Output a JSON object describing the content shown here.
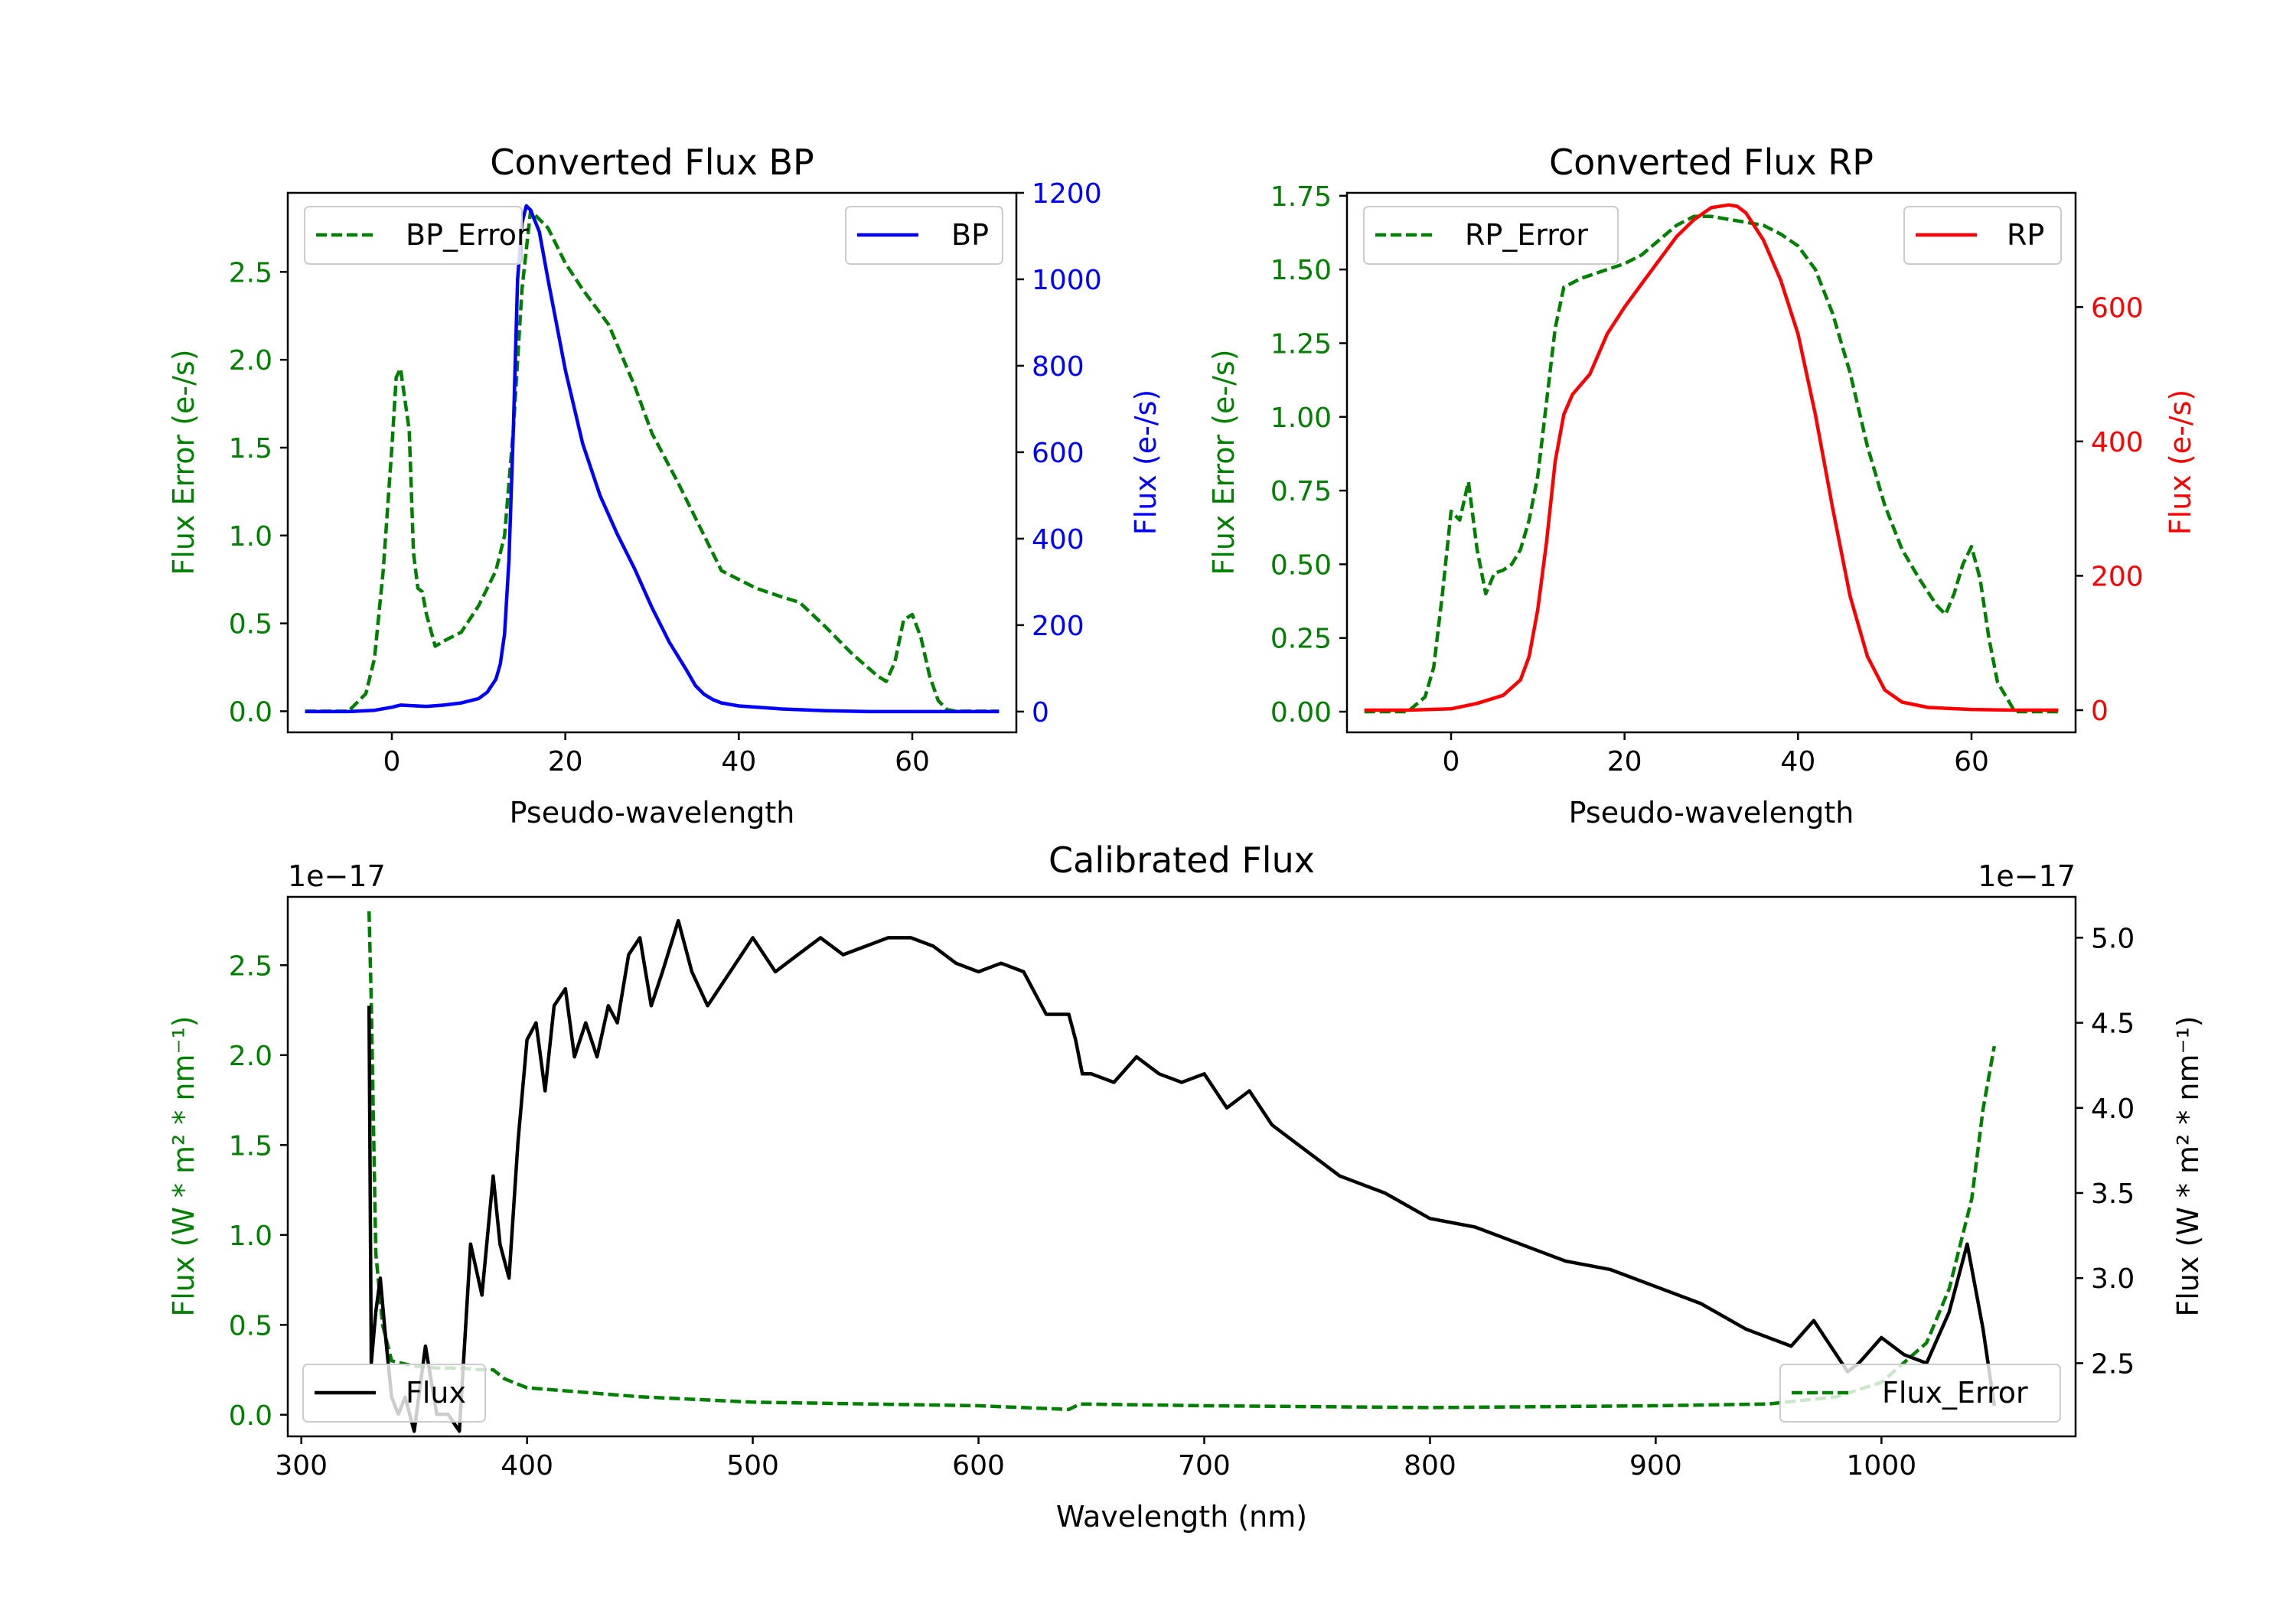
{
  "chart_data": [
    {
      "id": "bp",
      "type": "line",
      "title": "Converted Flux BP",
      "xlabel": "Pseudo-wavelength",
      "ylabel_left": "Flux Error (e-/s)",
      "ylabel_right": "Flux (e-/s)",
      "xlim": [
        -12,
        72
      ],
      "ylim_left": [
        -0.12,
        2.95
      ],
      "ylim_right": [
        -48,
        1200
      ],
      "xticks": [
        0,
        20,
        40,
        60
      ],
      "yticks_left": [
        0.0,
        0.5,
        1.0,
        1.5,
        2.0,
        2.5
      ],
      "yticks_right": [
        0,
        200,
        400,
        600,
        800,
        1000,
        1200
      ],
      "series_left": {
        "name": "BP_Error",
        "color": "#008000",
        "dash": true,
        "x": [
          -10,
          -5,
          -3,
          -2,
          -1,
          0,
          0.5,
          1,
          2,
          2.5,
          3,
          3.5,
          4,
          5,
          6,
          8,
          10,
          12,
          13,
          14,
          15,
          16,
          18,
          20,
          22,
          25,
          28,
          30,
          33,
          36,
          38,
          40,
          42,
          45,
          47,
          50,
          53,
          56,
          57,
          58,
          59,
          60,
          61,
          62,
          63,
          64,
          65,
          70
        ],
        "y": [
          0,
          0,
          0.1,
          0.3,
          0.8,
          1.5,
          1.9,
          1.95,
          1.6,
          0.9,
          0.7,
          0.68,
          0.55,
          0.37,
          0.4,
          0.45,
          0.6,
          0.8,
          1.0,
          1.6,
          2.4,
          2.85,
          2.75,
          2.55,
          2.4,
          2.2,
          1.85,
          1.58,
          1.3,
          1.0,
          0.8,
          0.75,
          0.7,
          0.65,
          0.62,
          0.48,
          0.33,
          0.2,
          0.17,
          0.28,
          0.52,
          0.55,
          0.42,
          0.2,
          0.06,
          0.01,
          0,
          0
        ]
      },
      "series_right": {
        "name": "BP",
        "color": "#0000ff",
        "dash": false,
        "x": [
          -10,
          -5,
          -2,
          0,
          1,
          2,
          4,
          6,
          8,
          10,
          11,
          12,
          12.5,
          13,
          13.5,
          14,
          14.5,
          15,
          15.5,
          16,
          17,
          18,
          20,
          22,
          24,
          26,
          28,
          30,
          32,
          34,
          35,
          36,
          37,
          38,
          40,
          45,
          50,
          55,
          60,
          65,
          70
        ],
        "y": [
          0,
          0,
          3,
          10,
          15,
          14,
          12,
          15,
          20,
          30,
          45,
          75,
          110,
          180,
          350,
          650,
          1000,
          1130,
          1170,
          1160,
          1110,
          1000,
          790,
          620,
          500,
          410,
          330,
          240,
          160,
          95,
          60,
          40,
          28,
          20,
          13,
          6,
          2,
          0,
          0,
          0,
          0
        ]
      },
      "legend_left": "top-left",
      "legend_right": "top-right"
    },
    {
      "id": "rp",
      "type": "line",
      "title": "Converted Flux RP",
      "xlabel": "Pseudo-wavelength",
      "ylabel_left": "Flux Error (e-/s)",
      "ylabel_right": "Flux (e-/s)",
      "xlim": [
        -12,
        72
      ],
      "ylim_left": [
        -0.07,
        1.76
      ],
      "ylim_right": [
        -33,
        770
      ],
      "xticks": [
        0,
        20,
        40,
        60
      ],
      "yticks_left": [
        0.0,
        0.25,
        0.5,
        0.75,
        1.0,
        1.25,
        1.5,
        1.75
      ],
      "yticks_right": [
        0,
        200,
        400,
        600
      ],
      "series_left": {
        "name": "RP_Error",
        "color": "#008000",
        "dash": true,
        "x": [
          -10,
          -5,
          -3,
          -2,
          -1,
          0,
          1,
          2,
          3,
          4,
          5,
          6,
          7,
          8,
          9,
          10,
          11,
          12,
          13,
          15,
          18,
          20,
          22,
          24,
          26,
          28,
          30,
          32,
          34,
          36,
          38,
          40,
          42,
          44,
          46,
          48,
          50,
          52,
          54,
          56,
          57,
          58,
          59,
          60,
          61,
          62,
          63,
          65,
          70
        ],
        "y": [
          0,
          0,
          0.05,
          0.15,
          0.4,
          0.68,
          0.65,
          0.78,
          0.55,
          0.4,
          0.47,
          0.48,
          0.5,
          0.55,
          0.65,
          0.8,
          1.05,
          1.3,
          1.44,
          1.47,
          1.5,
          1.52,
          1.55,
          1.6,
          1.65,
          1.68,
          1.68,
          1.67,
          1.66,
          1.65,
          1.62,
          1.58,
          1.5,
          1.35,
          1.15,
          0.9,
          0.7,
          0.55,
          0.45,
          0.36,
          0.33,
          0.4,
          0.5,
          0.56,
          0.45,
          0.25,
          0.1,
          0,
          0
        ]
      },
      "series_right": {
        "name": "RP",
        "color": "#ff0000",
        "dash": false,
        "x": [
          -10,
          -5,
          0,
          3,
          6,
          8,
          9,
          10,
          11,
          12,
          13,
          14,
          16,
          18,
          20,
          22,
          24,
          26,
          28,
          30,
          32,
          33,
          34,
          36,
          38,
          40,
          42,
          44,
          46,
          48,
          50,
          52,
          55,
          60,
          65,
          70
        ],
        "y": [
          0,
          0,
          2,
          10,
          22,
          45,
          80,
          150,
          250,
          370,
          440,
          470,
          500,
          560,
          600,
          635,
          670,
          705,
          730,
          748,
          752,
          750,
          740,
          700,
          640,
          560,
          440,
          300,
          170,
          80,
          30,
          12,
          4,
          1,
          0,
          0
        ]
      },
      "legend_left": "top-left",
      "legend_right": "top-right"
    },
    {
      "id": "cal",
      "type": "line",
      "title": "Calibrated Flux",
      "xlabel": "Wavelength (nm)",
      "ylabel_left": "Flux (W * m² * nm⁻¹)",
      "ylabel_right": "Flux (W * m² * nm⁻¹)",
      "offset_left": "1e−17",
      "offset_right": "1e−17",
      "xlim": [
        294,
        1086
      ],
      "ylim_left": [
        -0.12,
        2.88
      ],
      "ylim_right": [
        2.07,
        5.24
      ],
      "xticks": [
        300,
        400,
        500,
        600,
        700,
        800,
        900,
        1000
      ],
      "yticks_left": [
        0.0,
        0.5,
        1.0,
        1.5,
        2.0,
        2.5
      ],
      "yticks_right": [
        2.5,
        3.0,
        3.5,
        4.0,
        4.5,
        5.0
      ],
      "series_left": {
        "name": "Flux_Error",
        "color": "#008000",
        "dash": true,
        "x": [
          330,
          331,
          333,
          336,
          340,
          350,
          360,
          370,
          380,
          385,
          390,
          400,
          450,
          500,
          600,
          640,
          645,
          700,
          800,
          900,
          950,
          980,
          1000,
          1020,
          1030,
          1040,
          1045,
          1050
        ],
        "y": [
          2.8,
          2.3,
          0.9,
          0.5,
          0.3,
          0.27,
          0.26,
          0.26,
          0.25,
          0.25,
          0.2,
          0.15,
          0.1,
          0.07,
          0.05,
          0.03,
          0.06,
          0.05,
          0.04,
          0.05,
          0.06,
          0.1,
          0.18,
          0.4,
          0.7,
          1.2,
          1.7,
          2.05
        ]
      },
      "series_right": {
        "name": "Flux",
        "color": "#000000",
        "dash": false,
        "x": [
          330,
          331,
          333,
          335,
          337,
          340,
          343,
          346,
          350,
          355,
          360,
          365,
          370,
          375,
          380,
          385,
          388,
          392,
          396,
          400,
          404,
          408,
          412,
          417,
          421,
          426,
          431,
          436,
          440,
          445,
          450,
          455,
          460,
          467,
          473,
          480,
          490,
          500,
          510,
          520,
          530,
          540,
          550,
          560,
          570,
          580,
          590,
          600,
          610,
          620,
          630,
          640,
          643,
          646,
          650,
          660,
          670,
          680,
          690,
          700,
          710,
          720,
          730,
          740,
          760,
          780,
          800,
          820,
          840,
          860,
          880,
          900,
          920,
          940,
          960,
          970,
          980,
          985,
          990,
          1000,
          1010,
          1020,
          1030,
          1038,
          1045,
          1050
        ],
        "y": [
          4.6,
          2.5,
          2.8,
          3.0,
          2.7,
          2.3,
          2.2,
          2.3,
          2.1,
          2.6,
          2.2,
          2.2,
          2.1,
          3.2,
          2.9,
          3.6,
          3.2,
          3.0,
          3.8,
          4.4,
          4.5,
          4.1,
          4.6,
          4.7,
          4.3,
          4.5,
          4.3,
          4.6,
          4.5,
          4.9,
          5.0,
          4.6,
          4.8,
          5.1,
          4.8,
          4.6,
          4.8,
          5.0,
          4.8,
          4.9,
          5.0,
          4.9,
          4.95,
          5.0,
          5.0,
          4.95,
          4.85,
          4.8,
          4.85,
          4.8,
          4.55,
          4.55,
          4.4,
          4.2,
          4.2,
          4.15,
          4.3,
          4.2,
          4.15,
          4.2,
          4.0,
          4.1,
          3.9,
          3.8,
          3.6,
          3.5,
          3.35,
          3.3,
          3.2,
          3.1,
          3.05,
          2.95,
          2.85,
          2.7,
          2.6,
          2.75,
          2.55,
          2.45,
          2.5,
          2.65,
          2.55,
          2.5,
          2.8,
          3.2,
          2.7,
          2.25
        ]
      },
      "legend_left": "bottom-right",
      "legend_right": "bottom-left"
    }
  ]
}
